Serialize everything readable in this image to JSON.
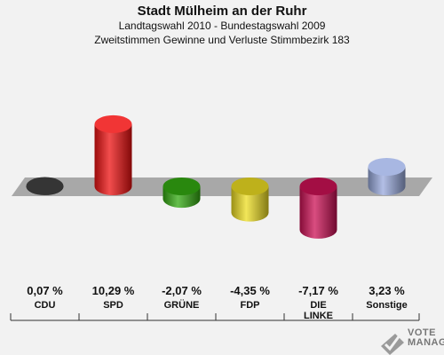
{
  "header": {
    "title": "Stadt Mülheim an der Ruhr",
    "subtitle": "Landtagswahl 2010 - Bundestagswahl 2009",
    "subtitle2": "Zweitstimmen Gewinne und Verluste Stimmbezirk 183"
  },
  "chart_data": {
    "type": "bar",
    "title": "Stadt Mülheim an der Ruhr",
    "categories": [
      "CDU",
      "SPD",
      "GRÜNE",
      "FDP",
      "DIE LINKE",
      "Sonstige"
    ],
    "values": [
      0.07,
      10.29,
      -2.07,
      -4.35,
      -7.17,
      3.23
    ],
    "value_labels": [
      "0,07 %",
      "10,29 %",
      "-2,07 %",
      "-4,35 %",
      "-7,17 %",
      "3,23 %"
    ],
    "colors": [
      "#111111",
      "#ee1111",
      "#33aa11",
      "#eedd22",
      "#cc1155",
      "#99aadd"
    ],
    "ylim": [
      -7.17,
      10.29
    ],
    "grid": false
  },
  "watermark": {
    "line1": "VOTE",
    "line2": "MANAGER"
  }
}
